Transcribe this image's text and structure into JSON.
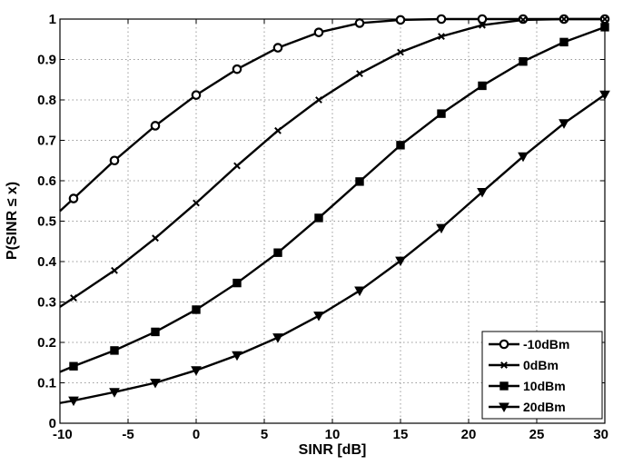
{
  "chart_data": {
    "type": "line",
    "title": "",
    "xlabel": "SINR [dB]",
    "ylabel": "P(SINR ≤ x)",
    "xlim": [
      -10,
      30
    ],
    "ylim": [
      0,
      1
    ],
    "xticks": [
      "-10",
      "-5",
      "0",
      "5",
      "10",
      "15",
      "20",
      "25",
      "30"
    ],
    "yticks": [
      "0",
      "0.1",
      "0.2",
      "0.3",
      "0.4",
      "0.5",
      "0.6",
      "0.7",
      "0.8",
      "0.9",
      "1"
    ],
    "grid": true,
    "legend_position": "bottom-right",
    "line_color": "#000000",
    "series": [
      {
        "name": "-10dBm",
        "marker": "circle",
        "x": [
          -10,
          -9,
          -6,
          -3,
          0,
          3,
          6,
          9,
          12,
          15,
          18,
          21,
          24,
          27,
          30
        ],
        "y": [
          0.525,
          0.556,
          0.65,
          0.736,
          0.812,
          0.876,
          0.929,
          0.967,
          0.99,
          0.998,
          1.0,
          1.0,
          1.0,
          1.0,
          1.0
        ]
      },
      {
        "name": "0dBm",
        "marker": "x",
        "x": [
          -10,
          -9,
          -6,
          -3,
          0,
          3,
          6,
          9,
          12,
          15,
          18,
          21,
          24,
          27,
          30
        ],
        "y": [
          0.288,
          0.31,
          0.378,
          0.458,
          0.545,
          0.637,
          0.724,
          0.8,
          0.865,
          0.918,
          0.957,
          0.985,
          0.998,
          1.0,
          1.0
        ]
      },
      {
        "name": "10dBm",
        "marker": "square",
        "x": [
          -10,
          -9,
          -6,
          -3,
          0,
          3,
          6,
          9,
          12,
          15,
          18,
          21,
          24,
          27,
          30
        ],
        "y": [
          0.127,
          0.141,
          0.18,
          0.226,
          0.281,
          0.347,
          0.422,
          0.508,
          0.598,
          0.688,
          0.766,
          0.835,
          0.895,
          0.943,
          0.98
        ]
      },
      {
        "name": "20dBm",
        "marker": "triangle-down",
        "x": [
          -10,
          -9,
          -6,
          -3,
          0,
          3,
          6,
          9,
          12,
          15,
          18,
          21,
          24,
          27,
          30
        ],
        "y": [
          0.05,
          0.056,
          0.077,
          0.1,
          0.131,
          0.168,
          0.212,
          0.266,
          0.328,
          0.402,
          0.483,
          0.572,
          0.66,
          0.742,
          0.813
        ]
      }
    ]
  }
}
